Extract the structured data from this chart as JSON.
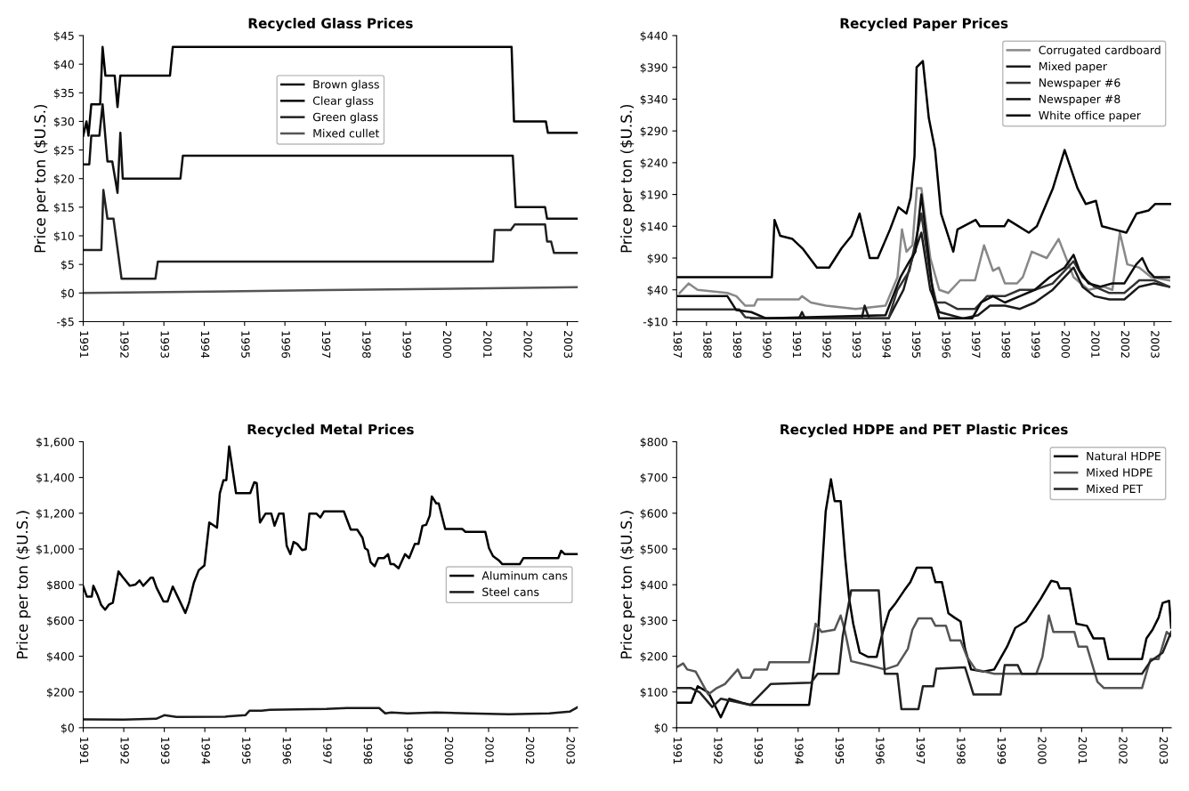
{
  "chart_data": [
    {
      "type": "line",
      "title": "Recycled Glass Prices",
      "ylabel": "Price per ton ($U.S.)",
      "legend": "upper center",
      "xlim": [
        1991,
        2003.26
      ],
      "xticks": [
        1991,
        1992,
        1993,
        1994,
        1995,
        1996,
        1997,
        1998,
        1999,
        2000,
        2001,
        2002,
        2003
      ],
      "ylim": [
        -5,
        45
      ],
      "yticks": [
        {
          "value": -5,
          "label": "-$5"
        },
        {
          "value": 0,
          "label": "$0"
        },
        {
          "value": 5,
          "label": "$5"
        },
        {
          "value": 10,
          "label": "$10"
        },
        {
          "value": 15,
          "label": "$15"
        },
        {
          "value": 20,
          "label": "$20"
        },
        {
          "value": 25,
          "label": "$25"
        },
        {
          "value": 30,
          "label": "$30"
        },
        {
          "value": 35,
          "label": "$35"
        },
        {
          "value": 40,
          "label": "$40"
        },
        {
          "value": 45,
          "label": "$45"
        }
      ],
      "series": [
        {
          "name": "Brown glass",
          "color": "#111111",
          "x": [
            1991,
            1991.15,
            1991.2,
            1991.4,
            1991.48,
            1991.6,
            1991.72,
            1991.85,
            1991.92,
            1991.98,
            1993.41,
            1993.47,
            2001.65,
            2001.72,
            2002.45,
            2002.5,
            2003.26
          ],
          "values": [
            22.5,
            22.5,
            27.5,
            27.5,
            33,
            23,
            23,
            17.5,
            28,
            20,
            20,
            24,
            24,
            15,
            15,
            13,
            13
          ]
        },
        {
          "name": "Clear glass",
          "color": "#000000",
          "x": [
            1991,
            1991.08,
            1991.13,
            1991.2,
            1991.42,
            1991.48,
            1991.55,
            1991.78,
            1991.85,
            1991.92,
            1993.15,
            1993.22,
            2001.62,
            2001.68,
            2002.47,
            2002.52,
            2003.26
          ],
          "values": [
            27.5,
            30,
            27.5,
            33,
            33,
            43,
            38,
            38,
            32.5,
            38,
            38,
            43,
            43,
            30,
            30,
            28,
            28
          ]
        },
        {
          "name": "Green glass",
          "color": "#222222",
          "x": [
            1991,
            1991.45,
            1991.5,
            1991.6,
            1991.75,
            1991.95,
            1992.79,
            1992.85,
            2001.16,
            2001.2,
            2001.6,
            2001.7,
            2002.45,
            2002.5,
            2002.6,
            2002.67,
            2003.26
          ],
          "values": [
            7.5,
            7.5,
            18,
            13,
            13,
            2.5,
            2.5,
            5.5,
            5.5,
            11,
            11,
            12,
            12,
            9,
            9,
            7,
            7
          ]
        },
        {
          "name": "Mixed cullet",
          "color": "#555555",
          "x": [
            1991,
            1997,
            2003.26
          ],
          "values": [
            0,
            0.5,
            1
          ]
        }
      ]
    },
    {
      "type": "line",
      "title": "Recycled Paper Prices",
      "ylabel": "Price per ton ($U.S.)",
      "legend": "upper right",
      "xlim": [
        1987,
        2003.57
      ],
      "xticks": [
        1987,
        1988,
        1989,
        1990,
        1991,
        1992,
        1993,
        1994,
        1995,
        1996,
        1997,
        1998,
        1999,
        2000,
        2001,
        2002,
        2003
      ],
      "ylim": [
        -10,
        440
      ],
      "yticks": [
        {
          "value": -10,
          "label": "-$10"
        },
        {
          "value": 40,
          "label": "$40"
        },
        {
          "value": 90,
          "label": "$90"
        },
        {
          "value": 140,
          "label": "$140"
        },
        {
          "value": 190,
          "label": "$190"
        },
        {
          "value": 240,
          "label": "$240"
        },
        {
          "value": 290,
          "label": "$290"
        },
        {
          "value": 340,
          "label": "$340"
        },
        {
          "value": 390,
          "label": "$390"
        },
        {
          "value": 440,
          "label": "$440"
        }
      ],
      "series": [
        {
          "name": "Corrugated cardboard",
          "color": "#888888",
          "x": [
            1987.1,
            1987.4,
            1987.7,
            1988.7,
            1989.0,
            1989.3,
            1989.6,
            1989.7,
            1991.1,
            1991.2,
            1991.5,
            1992.0,
            1993.0,
            1994.0,
            1994.4,
            1994.55,
            1994.7,
            1994.9,
            1995.05,
            1995.2,
            1995.5,
            1995.8,
            1996.1,
            1996.5,
            1997.0,
            1997.3,
            1997.6,
            1997.8,
            1998.0,
            1998.4,
            1998.6,
            1998.9,
            1999.4,
            1999.8,
            2000.3,
            2000.8,
            2001.3,
            2001.6,
            2001.85,
            2002.1,
            2002.5,
            2002.9,
            2003.5
          ],
          "values": [
            35,
            50,
            40,
            35,
            30,
            15,
            15,
            25,
            25,
            30,
            20,
            15,
            10,
            15,
            60,
            135,
            100,
            110,
            200,
            200,
            90,
            40,
            35,
            55,
            55,
            110,
            70,
            75,
            50,
            50,
            60,
            100,
            90,
            120,
            60,
            40,
            45,
            40,
            130,
            80,
            75,
            60,
            55
          ]
        },
        {
          "name": "Mixed paper",
          "color": "#1a1a1a",
          "x": [
            1989.5,
            1990.5,
            1991.1,
            1991.2,
            1991.3,
            1993.2,
            1993.3,
            1993.45,
            1994.1,
            1994.6,
            1994.9,
            1995.2,
            1995.5,
            1995.8,
            1996.6,
            1997.1,
            1997.5,
            1998.0,
            1998.5,
            1999.0,
            1999.6,
            2000.3,
            2000.6,
            2001.0,
            2001.5,
            2002.0,
            2002.5,
            2003.0,
            2003.5
          ],
          "values": [
            -5,
            -5,
            -5,
            5,
            -5,
            -5,
            15,
            -5,
            -5,
            40,
            90,
            130,
            40,
            5,
            -5,
            0,
            15,
            15,
            10,
            20,
            40,
            75,
            45,
            30,
            25,
            25,
            45,
            50,
            45
          ]
        },
        {
          "name": "Newspaper #6",
          "color": "#333333",
          "x": [
            1987,
            1989.1,
            1989.3,
            1989.7,
            1994.1,
            1994.4,
            1994.8,
            1995.2,
            1995.5,
            1995.7,
            1996.0,
            1996.4,
            1997.0,
            1997.4,
            1998.0,
            1998.5,
            1999.0,
            1999.6,
            2000.3,
            2000.6,
            2001.0,
            2001.5,
            2002.0,
            2002.5,
            2003.0,
            2003.5
          ],
          "values": [
            9,
            9,
            -3,
            -5,
            -5,
            40,
            70,
            160,
            60,
            20,
            20,
            10,
            10,
            30,
            30,
            40,
            40,
            50,
            85,
            60,
            45,
            35,
            35,
            55,
            55,
            45
          ]
        },
        {
          "name": "Newspaper #8",
          "color": "#0d0d0d",
          "x": [
            1987,
            1988.7,
            1989.0,
            1989.5,
            1990.0,
            1994.0,
            1994.5,
            1994.8,
            1995.0,
            1995.2,
            1995.35,
            1995.6,
            1995.8,
            1996.9,
            1997.2,
            1997.6,
            1998.0,
            1998.5,
            1999.0,
            1999.5,
            2000.0,
            2000.3,
            2000.5,
            2000.8,
            2001.2,
            2001.6,
            2002.0,
            2002.4,
            2002.6,
            2002.8,
            2003.0,
            2003.5
          ],
          "values": [
            30,
            30,
            8,
            5,
            -5,
            0,
            60,
            85,
            100,
            190,
            130,
            30,
            -5,
            -5,
            20,
            30,
            20,
            30,
            40,
            60,
            75,
            95,
            70,
            50,
            45,
            50,
            50,
            80,
            90,
            70,
            60,
            60
          ]
        },
        {
          "name": "White office paper",
          "color": "#000000",
          "x": [
            1987.0,
            1990.19,
            1990.28,
            1990.47,
            1990.88,
            1991.22,
            1991.7,
            1992.11,
            1992.52,
            1992.86,
            1993.13,
            1993.47,
            1993.74,
            1994.15,
            1994.43,
            1994.7,
            1994.84,
            1994.97,
            1995.04,
            1995.25,
            1995.45,
            1995.66,
            1995.86,
            1996.27,
            1996.41,
            1997.02,
            1997.16,
            1997.98,
            1998.11,
            1998.8,
            1999.07,
            1999.61,
            2000.0,
            2000.43,
            2000.71,
            2001.05,
            2001.25,
            2001.66,
            2002.07,
            2002.41,
            2002.82,
            2003.03,
            2003.57
          ],
          "values": [
            60,
            60,
            150,
            125,
            120,
            105,
            75,
            75,
            105,
            125,
            160,
            90,
            90,
            135,
            170,
            160,
            185,
            250,
            390,
            400,
            310,
            260,
            160,
            100,
            135,
            150,
            140,
            140,
            150,
            130,
            140,
            200,
            260,
            200,
            175,
            180,
            140,
            135,
            130,
            160,
            165,
            175,
            175
          ]
        }
      ]
    },
    {
      "type": "line",
      "title": "Recycled Metal Prices",
      "ylabel": "Price per ton ($U.S.)",
      "legend": "center right",
      "xlim": [
        1991,
        2003.2
      ],
      "xticks": [
        1991,
        1992,
        1993,
        1994,
        1995,
        1996,
        1997,
        1998,
        1999,
        2000,
        2001,
        2002,
        2003
      ],
      "ylim": [
        0,
        1600
      ],
      "yticks": [
        {
          "value": 0,
          "label": "$0"
        },
        {
          "value": 200,
          "label": "$200"
        },
        {
          "value": 400,
          "label": "$400"
        },
        {
          "value": 600,
          "label": "$600"
        },
        {
          "value": 800,
          "label": "$800"
        },
        {
          "value": 1000,
          "label": "$1,000"
        },
        {
          "value": 1200,
          "label": "$1,200"
        },
        {
          "value": 1400,
          "label": "$1,400"
        },
        {
          "value": 1600,
          "label": "$1,600"
        }
      ],
      "series": [
        {
          "name": "Aluminum cans",
          "color": "#000000",
          "x": [
            1991.0,
            1991.09,
            1991.21,
            1991.25,
            1991.35,
            1991.44,
            1991.54,
            1991.63,
            1991.73,
            1991.87,
            1991.96,
            1992.15,
            1992.29,
            1992.39,
            1992.48,
            1992.67,
            1992.72,
            1992.81,
            1992.98,
            1993.08,
            1993.21,
            1993.33,
            1993.52,
            1993.61,
            1993.73,
            1993.85,
            1993.99,
            1994.11,
            1994.3,
            1994.37,
            1994.46,
            1994.53,
            1994.6,
            1994.77,
            1995.12,
            1995.22,
            1995.28,
            1995.36,
            1995.5,
            1995.64,
            1995.72,
            1995.83,
            1995.94,
            1996.02,
            1996.11,
            1996.19,
            1996.28,
            1996.4,
            1996.49,
            1996.58,
            1996.75,
            1996.85,
            1996.94,
            1997.43,
            1997.6,
            1997.76,
            1997.89,
            1997.95,
            1998.02,
            1998.09,
            1998.19,
            1998.28,
            1998.42,
            1998.52,
            1998.58,
            1998.66,
            1998.78,
            1998.94,
            1999.04,
            1999.18,
            1999.27,
            1999.37,
            1999.46,
            1999.55,
            1999.6,
            1999.71,
            1999.77,
            1999.93,
            2000.35,
            2000.43,
            2000.92,
            2001.01,
            2001.11,
            2001.25,
            2001.34,
            2001.77,
            2001.86,
            2002.72,
            2002.79,
            2002.88,
            2003.2
          ],
          "values": [
            790,
            733,
            733,
            794,
            744,
            688,
            660,
            688,
            699,
            874,
            847,
            794,
            801,
            824,
            794,
            840,
            840,
            783,
            706,
            706,
            790,
            733,
            642,
            699,
            812,
            881,
            908,
            1148,
            1119,
            1312,
            1385,
            1385,
            1573,
            1312,
            1312,
            1373,
            1369,
            1148,
            1198,
            1198,
            1130,
            1198,
            1198,
            1017,
            971,
            1039,
            1028,
            994,
            999,
            1198,
            1198,
            1176,
            1210,
            1210,
            1108,
            1108,
            1062,
            1005,
            994,
            926,
            903,
            949,
            949,
            971,
            915,
            915,
            892,
            971,
            949,
            1028,
            1028,
            1130,
            1135,
            1187,
            1294,
            1255,
            1255,
            1112,
            1112,
            1096,
            1096,
            1005,
            960,
            937,
            915,
            915,
            949,
            949,
            990,
            971,
            971
          ]
        },
        {
          "name": "Steel cans",
          "color": "#1a1a1a",
          "x": [
            1991,
            1992,
            1992.8,
            1993.0,
            1993.3,
            1994.5,
            1995.0,
            1995.1,
            1995.4,
            1995.6,
            1997.0,
            1997.5,
            1998.3,
            1998.45,
            1998.6,
            1999.0,
            1999.7,
            2000.5,
            2001.5,
            2002.5,
            2003.0,
            2003.2
          ],
          "values": [
            47,
            45,
            50,
            70,
            60,
            62,
            70,
            95,
            95,
            100,
            105,
            110,
            110,
            80,
            85,
            80,
            85,
            80,
            75,
            80,
            90,
            115
          ]
        }
      ]
    },
    {
      "type": "line",
      "title": "Recycled HDPE and PET Plastic Prices",
      "ylabel": "Price per ton ($U.S.)",
      "legend": "upper right",
      "xlim": [
        1991,
        2003.21
      ],
      "xticks": [
        1991,
        1992,
        1993,
        1994,
        1995,
        1996,
        1997,
        1998,
        1999,
        2000,
        2001,
        2002,
        2003
      ],
      "ylim": [
        0,
        800
      ],
      "yticks": [
        {
          "value": 0,
          "label": "$0"
        },
        {
          "value": 100,
          "label": "$100"
        },
        {
          "value": 200,
          "label": "$200"
        },
        {
          "value": 300,
          "label": "$300"
        },
        {
          "value": 400,
          "label": "$400"
        },
        {
          "value": 500,
          "label": "$500"
        },
        {
          "value": 600,
          "label": "$600"
        },
        {
          "value": 700,
          "label": "$700"
        },
        {
          "value": 800,
          "label": "$800"
        }
      ],
      "series": [
        {
          "name": "Natural HDPE",
          "color": "#000000",
          "x": [
            1991,
            1991.36,
            1991.52,
            1991.78,
            1992.09,
            1992.3,
            1992.61,
            1992.82,
            1994.27,
            1994.48,
            1994.68,
            1994.81,
            1994.9,
            1995.05,
            1995.16,
            1995.26,
            1995.36,
            1995.52,
            1995.73,
            1995.94,
            1996.09,
            1996.25,
            1996.41,
            1996.62,
            1996.77,
            1996.93,
            1997.29,
            1997.39,
            1997.55,
            1997.71,
            1997.86,
            1998.01,
            1998.12,
            1998.27,
            1998.58,
            1998.84,
            1999.16,
            1999.36,
            1999.62,
            1999.99,
            2000.25,
            2000.4,
            2000.46,
            2000.71,
            2000.87,
            2001.13,
            2001.29,
            2001.55,
            2001.66,
            2002.49,
            2002.6,
            2002.75,
            2002.9,
            2003.0,
            2003.16,
            2003.21
          ],
          "values": [
            70,
            70,
            116,
            99,
            29,
            81,
            70,
            64,
            64,
            244,
            605,
            695,
            634,
            634,
            477,
            361,
            291,
            210,
            198,
            198,
            268,
            326,
            349,
            384,
            407,
            448,
            448,
            407,
            407,
            320,
            308,
            297,
            221,
            163,
            157,
            163,
            227,
            279,
            297,
            361,
            411,
            407,
            390,
            390,
            291,
            285,
            250,
            250,
            192,
            192,
            250,
            274,
            308,
            349,
            355,
            280
          ]
        },
        {
          "name": "Mixed HDPE",
          "color": "#555555",
          "x": [
            1991,
            1991.16,
            1991.26,
            1991.47,
            1991.78,
            1991.99,
            1992.19,
            1992.51,
            1992.61,
            1992.82,
            1992.92,
            1993.23,
            1993.29,
            1994.27,
            1994.43,
            1994.58,
            1994.9,
            1995.05,
            1995.16,
            1995.31,
            1995.73,
            1996.14,
            1996.45,
            1996.71,
            1996.82,
            1996.97,
            1997.29,
            1997.39,
            1997.65,
            1997.76,
            1998.01,
            1998.17,
            1998.38,
            1998.84,
            1999.88,
            2000.03,
            2000.19,
            2000.3,
            2000.82,
            2000.92,
            2001.13,
            2001.39,
            2001.55,
            2002.49,
            2002.7,
            2002.9,
            2003.1,
            2003.21
          ],
          "values": [
            169,
            180,
            163,
            157,
            93,
            111,
            122,
            163,
            140,
            140,
            163,
            163,
            183,
            183,
            291,
            268,
            274,
            314,
            268,
            186,
            175,
            163,
            175,
            221,
            274,
            306,
            306,
            285,
            285,
            244,
            244,
            198,
            163,
            151,
            151,
            198,
            314,
            268,
            268,
            227,
            227,
            128,
            111,
            111,
            192,
            192,
            268,
            256
          ]
        },
        {
          "name": "Mixed PET",
          "color": "#222222",
          "x": [
            1991,
            1991.36,
            1991.57,
            1991.88,
            1992.09,
            1992.3,
            1992.82,
            1993.32,
            1994.32,
            1994.48,
            1995.0,
            1995.1,
            1995.31,
            1995.99,
            1996.14,
            1996.45,
            1996.55,
            1996.97,
            1997.08,
            1997.34,
            1997.41,
            1998.12,
            1998.33,
            1999.0,
            1999.1,
            1999.42,
            1999.52,
            2002.49,
            2002.7,
            2003.0,
            2003.21
          ],
          "values": [
            111,
            111,
            99,
            58,
            81,
            76,
            64,
            122,
            126,
            151,
            151,
            256,
            384,
            384,
            151,
            151,
            52,
            52,
            116,
            116,
            165,
            169,
            93,
            93,
            175,
            175,
            151,
            151,
            186,
            210,
            268
          ]
        }
      ]
    }
  ]
}
